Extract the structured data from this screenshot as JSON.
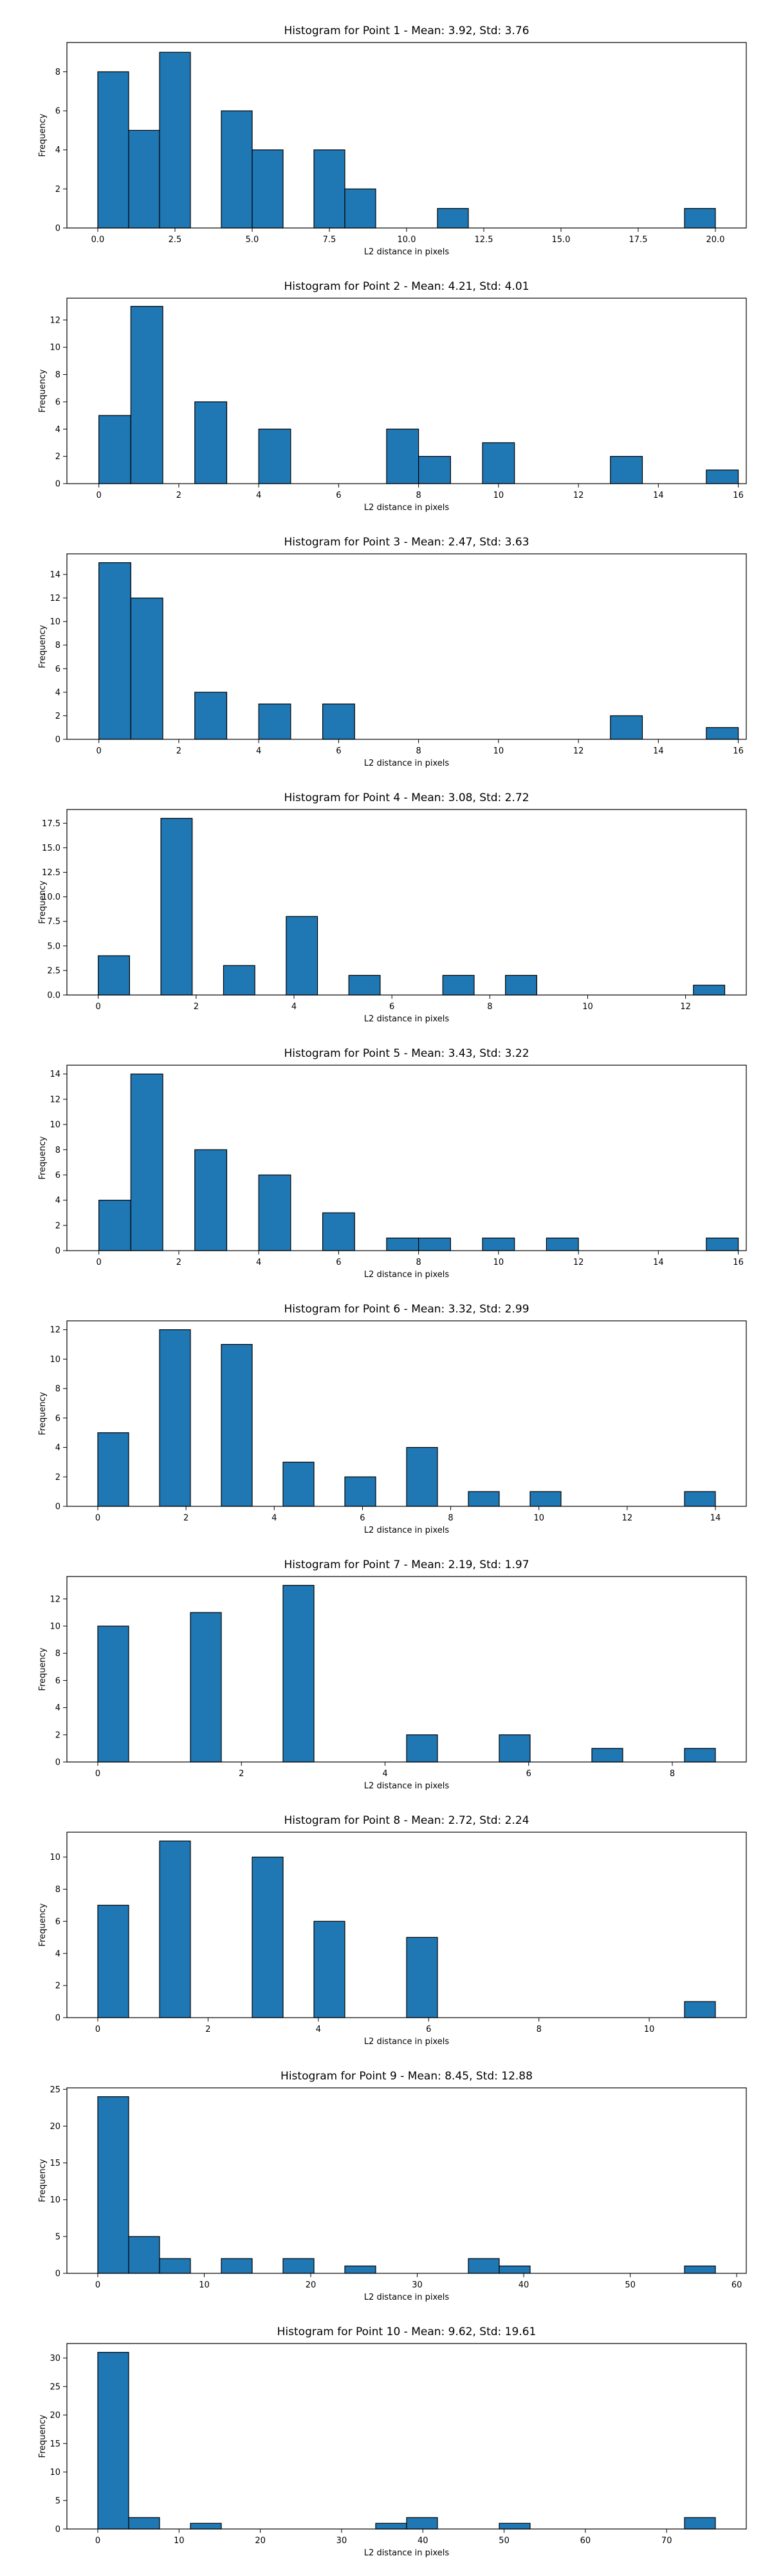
{
  "style": {
    "bar_color": "#1f77b4",
    "edge_color": "#000000",
    "axis_color": "#000000"
  },
  "chart_data": [
    {
      "type": "bar",
      "title": "Histogram for Point 1 - Mean: 3.92, Std: 3.76",
      "xlabel": "L2 distance in pixels",
      "ylabel": "Frequency",
      "xlim": [
        -1.0,
        21.0
      ],
      "ylim": [
        0,
        9.5
      ],
      "grid": false,
      "xticks": [
        0.0,
        2.5,
        5.0,
        7.5,
        10.0,
        12.5,
        15.0,
        17.5,
        20.0
      ],
      "xtick_labels": [
        "0.0",
        "2.5",
        "5.0",
        "7.5",
        "10.0",
        "12.5",
        "15.0",
        "17.5",
        "20.0"
      ],
      "yticks": [
        0,
        2,
        4,
        6,
        8
      ],
      "ytick_labels": [
        "0",
        "2",
        "4",
        "6",
        "8"
      ],
      "bins": [
        {
          "x0": 0.0,
          "x1": 1.0,
          "count": 8
        },
        {
          "x0": 1.0,
          "x1": 2.0,
          "count": 5
        },
        {
          "x0": 2.0,
          "x1": 3.0,
          "count": 9
        },
        {
          "x0": 4.0,
          "x1": 5.0,
          "count": 6
        },
        {
          "x0": 5.0,
          "x1": 6.0,
          "count": 4
        },
        {
          "x0": 7.0,
          "x1": 8.0,
          "count": 4
        },
        {
          "x0": 8.0,
          "x1": 9.0,
          "count": 2
        },
        {
          "x0": 11.0,
          "x1": 12.0,
          "count": 1
        },
        {
          "x0": 19.0,
          "x1": 20.0,
          "count": 1
        }
      ]
    },
    {
      "type": "bar",
      "title": "Histogram for Point 2 - Mean: 4.21, Std: 4.01",
      "xlabel": "L2 distance in pixels",
      "ylabel": "Frequency",
      "xlim": [
        -0.8,
        16.2
      ],
      "ylim": [
        0,
        13.6
      ],
      "grid": false,
      "xticks": [
        0,
        2,
        4,
        6,
        8,
        10,
        12,
        14,
        16
      ],
      "xtick_labels": [
        "0",
        "2",
        "4",
        "6",
        "8",
        "10",
        "12",
        "14",
        "16"
      ],
      "yticks": [
        0,
        2,
        4,
        6,
        8,
        10,
        12
      ],
      "ytick_labels": [
        "0",
        "2",
        "4",
        "6",
        "8",
        "10",
        "12"
      ],
      "bins": [
        {
          "x0": 0.0,
          "x1": 0.8,
          "count": 5
        },
        {
          "x0": 0.8,
          "x1": 1.6,
          "count": 13
        },
        {
          "x0": 2.4,
          "x1": 3.2,
          "count": 6
        },
        {
          "x0": 4.0,
          "x1": 4.8,
          "count": 4
        },
        {
          "x0": 7.2,
          "x1": 8.0,
          "count": 4
        },
        {
          "x0": 8.0,
          "x1": 8.8,
          "count": 2
        },
        {
          "x0": 9.6,
          "x1": 10.4,
          "count": 3
        },
        {
          "x0": 12.8,
          "x1": 13.6,
          "count": 2
        },
        {
          "x0": 15.2,
          "x1": 16.0,
          "count": 1
        }
      ]
    },
    {
      "type": "bar",
      "title": "Histogram for Point 3 - Mean: 2.47, Std: 3.63",
      "xlabel": "L2 distance in pixels",
      "ylabel": "Frequency",
      "xlim": [
        -0.8,
        16.2
      ],
      "ylim": [
        0,
        15.75
      ],
      "grid": false,
      "xticks": [
        0,
        2,
        4,
        6,
        8,
        10,
        12,
        14,
        16
      ],
      "xtick_labels": [
        "0",
        "2",
        "4",
        "6",
        "8",
        "10",
        "12",
        "14",
        "16"
      ],
      "yticks": [
        0,
        2,
        4,
        6,
        8,
        10,
        12,
        14
      ],
      "ytick_labels": [
        "0",
        "2",
        "4",
        "6",
        "8",
        "10",
        "12",
        "14"
      ],
      "bins": [
        {
          "x0": 0.0,
          "x1": 0.8,
          "count": 15
        },
        {
          "x0": 0.8,
          "x1": 1.6,
          "count": 12
        },
        {
          "x0": 2.4,
          "x1": 3.2,
          "count": 4
        },
        {
          "x0": 4.0,
          "x1": 4.8,
          "count": 3
        },
        {
          "x0": 5.6,
          "x1": 6.4,
          "count": 3
        },
        {
          "x0": 12.8,
          "x1": 13.6,
          "count": 2
        },
        {
          "x0": 15.2,
          "x1": 16.0,
          "count": 1
        }
      ]
    },
    {
      "type": "bar",
      "title": "Histogram for Point 4 - Mean: 3.08, Std: 2.72",
      "xlabel": "L2 distance in pixels",
      "ylabel": "Frequency",
      "xlim": [
        -0.64,
        13.24
      ],
      "ylim": [
        0,
        18.9
      ],
      "grid": false,
      "xticks": [
        0,
        2,
        4,
        6,
        8,
        10,
        12
      ],
      "xtick_labels": [
        "0",
        "2",
        "4",
        "6",
        "8",
        "10",
        "12"
      ],
      "yticks": [
        0,
        2.5,
        5,
        7.5,
        10,
        12.5,
        15,
        17.5
      ],
      "ytick_labels": [
        "0.0",
        "2.5",
        "5.0",
        "7.5",
        "10.0",
        "12.5",
        "15.0",
        "17.5"
      ],
      "bins": [
        {
          "x0": 0.0,
          "x1": 0.64,
          "count": 4
        },
        {
          "x0": 1.28,
          "x1": 1.92,
          "count": 18
        },
        {
          "x0": 2.56,
          "x1": 3.2,
          "count": 3
        },
        {
          "x0": 3.84,
          "x1": 4.48,
          "count": 8
        },
        {
          "x0": 5.12,
          "x1": 5.76,
          "count": 2
        },
        {
          "x0": 7.04,
          "x1": 7.68,
          "count": 2
        },
        {
          "x0": 8.32,
          "x1": 8.96,
          "count": 2
        },
        {
          "x0": 12.16,
          "x1": 12.8,
          "count": 1
        }
      ]
    },
    {
      "type": "bar",
      "title": "Histogram for Point 5 - Mean: 3.43, Std: 3.22",
      "xlabel": "L2 distance in pixels",
      "ylabel": "Frequency",
      "xlim": [
        -0.8,
        16.2
      ],
      "ylim": [
        0,
        14.7
      ],
      "grid": false,
      "xticks": [
        0,
        2,
        4,
        6,
        8,
        10,
        12,
        14,
        16
      ],
      "xtick_labels": [
        "0",
        "2",
        "4",
        "6",
        "8",
        "10",
        "12",
        "14",
        "16"
      ],
      "yticks": [
        0,
        2,
        4,
        6,
        8,
        10,
        12,
        14
      ],
      "ytick_labels": [
        "0",
        "2",
        "4",
        "6",
        "8",
        "10",
        "12",
        "14"
      ],
      "bins": [
        {
          "x0": 0.0,
          "x1": 0.8,
          "count": 4
        },
        {
          "x0": 0.8,
          "x1": 1.6,
          "count": 14
        },
        {
          "x0": 2.4,
          "x1": 3.2,
          "count": 8
        },
        {
          "x0": 4.0,
          "x1": 4.8,
          "count": 6
        },
        {
          "x0": 5.6,
          "x1": 6.4,
          "count": 3
        },
        {
          "x0": 7.2,
          "x1": 8.0,
          "count": 1
        },
        {
          "x0": 8.0,
          "x1": 8.8,
          "count": 1
        },
        {
          "x0": 9.6,
          "x1": 10.4,
          "count": 1
        },
        {
          "x0": 11.2,
          "x1": 12.0,
          "count": 1
        },
        {
          "x0": 15.2,
          "x1": 16.0,
          "count": 1
        }
      ]
    },
    {
      "type": "bar",
      "title": "Histogram for Point 6 - Mean: 3.32, Std: 2.99",
      "xlabel": "L2 distance in pixels",
      "ylabel": "Frequency",
      "xlim": [
        -0.7,
        14.7
      ],
      "ylim": [
        0,
        12.6
      ],
      "grid": false,
      "xticks": [
        0,
        2,
        4,
        6,
        8,
        10,
        12,
        14
      ],
      "xtick_labels": [
        "0",
        "2",
        "4",
        "6",
        "8",
        "10",
        "12",
        "14"
      ],
      "yticks": [
        0,
        2,
        4,
        6,
        8,
        10,
        12
      ],
      "ytick_labels": [
        "0",
        "2",
        "4",
        "6",
        "8",
        "10",
        "12"
      ],
      "bins": [
        {
          "x0": 0.0,
          "x1": 0.7,
          "count": 5
        },
        {
          "x0": 1.4,
          "x1": 2.1,
          "count": 12
        },
        {
          "x0": 2.8,
          "x1": 3.5,
          "count": 11
        },
        {
          "x0": 4.2,
          "x1": 4.9,
          "count": 3
        },
        {
          "x0": 5.6,
          "x1": 6.3,
          "count": 2
        },
        {
          "x0": 7.0,
          "x1": 7.7,
          "count": 4
        },
        {
          "x0": 8.4,
          "x1": 9.1,
          "count": 1
        },
        {
          "x0": 9.8,
          "x1": 10.5,
          "count": 1
        },
        {
          "x0": 13.3,
          "x1": 14.0,
          "count": 1
        }
      ]
    },
    {
      "type": "bar",
      "title": "Histogram for Point 7 - Mean: 2.19, Std: 1.97",
      "xlabel": "L2 distance in pixels",
      "ylabel": "Frequency",
      "xlim": [
        -0.43,
        9.03
      ],
      "ylim": [
        0,
        13.65
      ],
      "grid": false,
      "xticks": [
        0,
        2,
        4,
        6,
        8
      ],
      "xtick_labels": [
        "0",
        "2",
        "4",
        "6",
        "8"
      ],
      "yticks": [
        0,
        2,
        4,
        6,
        8,
        10,
        12
      ],
      "ytick_labels": [
        "0",
        "2",
        "4",
        "6",
        "8",
        "10",
        "12"
      ],
      "bins": [
        {
          "x0": 0.0,
          "x1": 0.43,
          "count": 10
        },
        {
          "x0": 1.29,
          "x1": 1.72,
          "count": 11
        },
        {
          "x0": 2.58,
          "x1": 3.01,
          "count": 13
        },
        {
          "x0": 4.3,
          "x1": 4.73,
          "count": 2
        },
        {
          "x0": 5.59,
          "x1": 6.02,
          "count": 2
        },
        {
          "x0": 6.88,
          "x1": 7.31,
          "count": 1
        },
        {
          "x0": 8.17,
          "x1": 8.6,
          "count": 1
        }
      ]
    },
    {
      "type": "bar",
      "title": "Histogram for Point 8 - Mean: 2.72, Std: 2.24",
      "xlabel": "L2 distance in pixels",
      "ylabel": "Frequency",
      "xlim": [
        -0.56,
        11.76
      ],
      "ylim": [
        0,
        11.55
      ],
      "grid": false,
      "xticks": [
        0,
        2,
        4,
        6,
        8,
        10
      ],
      "xtick_labels": [
        "0",
        "2",
        "4",
        "6",
        "8",
        "10"
      ],
      "yticks": [
        0,
        2,
        4,
        6,
        8,
        10
      ],
      "ytick_labels": [
        "0",
        "2",
        "4",
        "6",
        "8",
        "10"
      ],
      "bins": [
        {
          "x0": 0.0,
          "x1": 0.56,
          "count": 7
        },
        {
          "x0": 1.12,
          "x1": 1.68,
          "count": 11
        },
        {
          "x0": 2.8,
          "x1": 3.36,
          "count": 10
        },
        {
          "x0": 3.92,
          "x1": 4.48,
          "count": 6
        },
        {
          "x0": 5.6,
          "x1": 6.16,
          "count": 5
        },
        {
          "x0": 10.64,
          "x1": 11.2,
          "count": 1
        }
      ]
    },
    {
      "type": "bar",
      "title": "Histogram for Point 9 - Mean: 8.45, Std: 12.88",
      "xlabel": "L2 distance in pixels",
      "ylabel": "Frequency",
      "xlim": [
        -2.9,
        60.9
      ],
      "ylim": [
        0,
        25.2
      ],
      "grid": false,
      "xticks": [
        0,
        10,
        20,
        30,
        40,
        50,
        60
      ],
      "xtick_labels": [
        "0",
        "10",
        "20",
        "30",
        "40",
        "50",
        "60"
      ],
      "yticks": [
        0,
        5,
        10,
        15,
        20,
        25
      ],
      "ytick_labels": [
        "0",
        "5",
        "10",
        "15",
        "20",
        "25"
      ],
      "bins": [
        {
          "x0": 0.0,
          "x1": 2.9,
          "count": 24
        },
        {
          "x0": 2.9,
          "x1": 5.8,
          "count": 5
        },
        {
          "x0": 5.8,
          "x1": 8.7,
          "count": 2
        },
        {
          "x0": 11.6,
          "x1": 14.5,
          "count": 2
        },
        {
          "x0": 17.4,
          "x1": 20.3,
          "count": 2
        },
        {
          "x0": 23.2,
          "x1": 26.1,
          "count": 1
        },
        {
          "x0": 34.8,
          "x1": 37.7,
          "count": 2
        },
        {
          "x0": 37.7,
          "x1": 40.6,
          "count": 1
        },
        {
          "x0": 55.1,
          "x1": 58.0,
          "count": 1
        }
      ]
    },
    {
      "type": "bar",
      "title": "Histogram for Point 10 - Mean: 9.62, Std: 19.61",
      "xlabel": "L2 distance in pixels",
      "ylabel": "Frequency",
      "xlim": [
        -3.8,
        79.8
      ],
      "ylim": [
        0,
        32.55
      ],
      "grid": false,
      "xticks": [
        0,
        10,
        20,
        30,
        40,
        50,
        60,
        70
      ],
      "xtick_labels": [
        "0",
        "10",
        "20",
        "30",
        "40",
        "50",
        "60",
        "70"
      ],
      "yticks": [
        0,
        5,
        10,
        15,
        20,
        25,
        30
      ],
      "ytick_labels": [
        "0",
        "5",
        "10",
        "15",
        "20",
        "25",
        "30"
      ],
      "bins": [
        {
          "x0": 0.0,
          "x1": 3.8,
          "count": 31
        },
        {
          "x0": 3.8,
          "x1": 7.6,
          "count": 2
        },
        {
          "x0": 11.4,
          "x1": 15.2,
          "count": 1
        },
        {
          "x0": 34.2,
          "x1": 38.0,
          "count": 1
        },
        {
          "x0": 38.0,
          "x1": 41.8,
          "count": 2
        },
        {
          "x0": 49.4,
          "x1": 53.2,
          "count": 1
        },
        {
          "x0": 72.2,
          "x1": 76.0,
          "count": 2
        }
      ]
    }
  ]
}
